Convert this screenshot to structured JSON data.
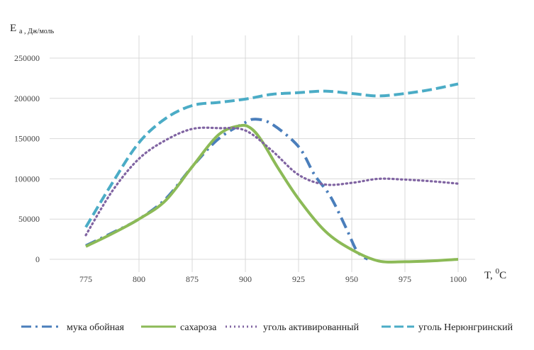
{
  "chart_data": {
    "type": "line",
    "ylabel_main": "E",
    "ylabel_sub": "а , Дж/моль",
    "xlabel_main": "T, ",
    "xlabel_sup": "0",
    "xlabel_unit": "C",
    "ylim": [
      0,
      250000
    ],
    "y_ticks": [
      "0",
      "50000",
      "100000",
      "150000",
      "200000",
      "250000"
    ],
    "categories": [
      "775",
      "800",
      "875",
      "900",
      "925",
      "950",
      "975",
      "1000"
    ],
    "series": [
      {
        "name": "мука обойная",
        "color": "#4a7ebb",
        "style": "dashdot",
        "x": [
          0,
          0.5,
          1,
          1.5,
          2,
          2.5,
          3,
          3.2,
          3.5,
          4,
          4.3,
          4.6,
          4.9,
          5.1,
          5.3
        ],
        "values": [
          17000,
          33000,
          50000,
          75000,
          115000,
          150000,
          170000,
          174000,
          168000,
          140000,
          105000,
          78000,
          38000,
          10000,
          0
        ]
      },
      {
        "name": "сахароза",
        "color": "#8cba57",
        "style": "solid",
        "x": [
          0,
          0.5,
          1,
          1.5,
          2,
          2.5,
          2.9,
          3.1,
          3.3,
          3.6,
          4,
          4.5,
          5,
          5.5,
          6,
          6.5,
          7
        ],
        "values": [
          16000,
          32000,
          50000,
          73000,
          115000,
          155000,
          166000,
          163000,
          148000,
          115000,
          75000,
          35000,
          12000,
          -2000,
          -3000,
          -2000,
          0
        ]
      },
      {
        "name": "уголь активированный",
        "color": "#8064a2",
        "style": "dotted",
        "x": [
          0,
          0.5,
          1,
          1.5,
          2,
          2.5,
          3,
          3.5,
          4,
          4.5,
          5,
          5.5,
          6,
          6.5,
          7
        ],
        "values": [
          30000,
          85000,
          125000,
          148000,
          162000,
          163000,
          160000,
          135000,
          105000,
          93000,
          95000,
          100000,
          99000,
          97000,
          94000
        ]
      },
      {
        "name": "уголь Нерюнгринский",
        "color": "#4bacc6",
        "style": "dashed",
        "x": [
          0,
          0.5,
          1,
          1.5,
          2,
          2.5,
          3,
          3.5,
          4,
          4.5,
          5,
          5.5,
          6,
          6.5,
          7
        ],
        "values": [
          40000,
          95000,
          145000,
          175000,
          191000,
          195000,
          199000,
          205000,
          207000,
          209000,
          206000,
          203000,
          206000,
          211000,
          218000
        ]
      }
    ]
  }
}
